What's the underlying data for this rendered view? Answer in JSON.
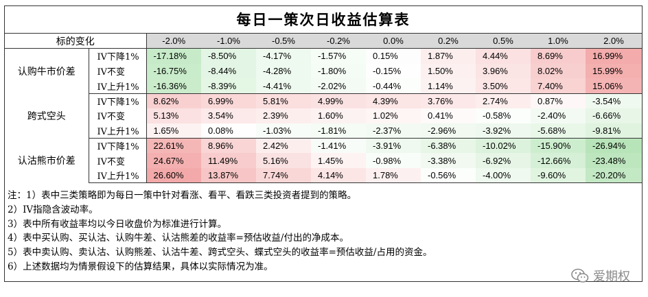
{
  "title": "每日一策次日收益估算表",
  "header": {
    "label": "标的变化",
    "columns": [
      "-2.0%",
      "-1.0%",
      "-0.5%",
      "-0.2%",
      "0.0%",
      "0.2%",
      "0.5%",
      "1.0%",
      "2.0%"
    ]
  },
  "groups": [
    {
      "name": "认购牛市价差",
      "rows": [
        {
          "label": "IV下降1%",
          "values": [
            "-17.18%",
            "-8.50%",
            "-4.17%",
            "-1.57%",
            "0.15%",
            "1.87%",
            "4.44%",
            "8.69%",
            "16.99%"
          ],
          "colors": [
            "#c7ebc9",
            "#e3f5e4",
            "#eef9ef",
            "#f6fcf6",
            "#fefdfd",
            "#fdeeee",
            "#fbe1e1",
            "#f8cccc",
            "#f3abab"
          ]
        },
        {
          "label": "IV不变",
          "values": [
            "-16.75%",
            "-8.44%",
            "-4.28%",
            "-1.80%",
            "-0.15%",
            "1.50%",
            "3.96%",
            "8.02%",
            "15.99%"
          ],
          "colors": [
            "#c9ecca",
            "#e3f5e4",
            "#eef9ef",
            "#f5fbf5",
            "#fdfefd",
            "#fdf0f0",
            "#fbe4e4",
            "#f8cfcf",
            "#f4afaf"
          ]
        },
        {
          "label": "IV上升1%",
          "values": [
            "-16.36%",
            "-8.39%",
            "-4.41%",
            "-2.02%",
            "-0.44%",
            "1.14%",
            "3.50%",
            "7.40%",
            "15.06%"
          ],
          "colors": [
            "#caeccb",
            "#e4f6e4",
            "#eef9ef",
            "#f4fbf4",
            "#fcfefc",
            "#fdf2f2",
            "#fce6e6",
            "#f9d2d2",
            "#f5b4b4"
          ]
        }
      ]
    },
    {
      "name": "跨式空头",
      "rows": [
        {
          "label": "IV下降1%",
          "values": [
            "8.62%",
            "6.99%",
            "5.81%",
            "4.99%",
            "4.39%",
            "3.76%",
            "2.74%",
            "0.87%",
            "-3.54%"
          ],
          "colors": [
            "#f9d0d0",
            "#fad8d8",
            "#fbdede",
            "#fbe2e2",
            "#fce5e5",
            "#fce8e8",
            "#fdeded",
            "#fef7f7",
            "#f0f9f0"
          ]
        },
        {
          "label": "IV不变",
          "values": [
            "5.13%",
            "3.54%",
            "2.39%",
            "1.60%",
            "1.02%",
            "0.41%",
            "-0.58%",
            "-2.40%",
            "-6.66%"
          ],
          "colors": [
            "#fbe1e1",
            "#fce9e9",
            "#fdeeee",
            "#fdf2f2",
            "#fef5f5",
            "#fefafa",
            "#fbfefb",
            "#f3faf3",
            "#e7f6e7"
          ]
        },
        {
          "label": "IV上升1%",
          "values": [
            "1.65%",
            "0.08%",
            "-1.03%",
            "-1.81%",
            "-2.37%",
            "-2.96%",
            "-3.92%",
            "-5.68%",
            "-9.81%"
          ],
          "colors": [
            "#fdf2f2",
            "#fffefe",
            "#f8fcf8",
            "#f5fbf5",
            "#f3faf3",
            "#f1f9f1",
            "#eef8ee",
            "#e9f7e9",
            "#dff3df"
          ]
        }
      ]
    },
    {
      "name": "认沽熊市价差",
      "rows": [
        {
          "label": "IV下降1%",
          "values": [
            "22.61%",
            "8.96%",
            "2.42%",
            "-1.41%",
            "-3.91%",
            "-6.38%",
            "-10.02%",
            "-15.90%",
            "-26.94%"
          ],
          "colors": [
            "#f5b6b6",
            "#f9d5d5",
            "#fdeeee",
            "#f8fcf8",
            "#eff9ef",
            "#e7f6e7",
            "#dcf2dc",
            "#cdeece",
            "#b7e4b8"
          ]
        },
        {
          "label": "IV不变",
          "values": [
            "24.67%",
            "11.49%",
            "5.16%",
            "1.45%",
            "-0.98%",
            "-3.38%",
            "-6.92%",
            "-12.66%",
            "-23.48%"
          ],
          "colors": [
            "#f4b0b0",
            "#f8cccc",
            "#fbe2e2",
            "#fdf3f3",
            "#f9fdf9",
            "#f1f9f1",
            "#e6f5e6",
            "#d5f0d6",
            "#bde6be"
          ]
        },
        {
          "label": "IV上升1%",
          "values": [
            "26.60%",
            "13.87%",
            "7.74%",
            "4.14%",
            "1.78%",
            "-0.56%",
            "-4.00%",
            "-9.60%",
            "-20.20%"
          ],
          "colors": [
            "#f3a9a9",
            "#f7c5c5",
            "#fad7d7",
            "#fce5e5",
            "#fdf0f0",
            "#fbfefb",
            "#eff9ef",
            "#e0f4e0",
            "#c3e8c4"
          ]
        }
      ]
    }
  ],
  "notes": [
    "注：1）表中三类策略即为每日一策中针对看涨、看平、看跌三类投资者提到的策略。",
    "2）IV指隐含波动率。",
    "3）表中所有收益率均以今日收盘价为标准进行计算。",
    "4）表中买认购、买认沽、认购牛差、认沽熊差的收益率=预估收益/付出的净成本。",
    "5）表中卖认购、卖认沽、认购熊差、认沽牛差、跨式空头、蝶式空头的收益率=预估收益/占用的资金。",
    "6）上述数据均为情景假设下的估算结果，具体以实际情况为准。"
  ],
  "logo": {
    "text": "爱期权",
    "icon": "wechat-icon"
  }
}
